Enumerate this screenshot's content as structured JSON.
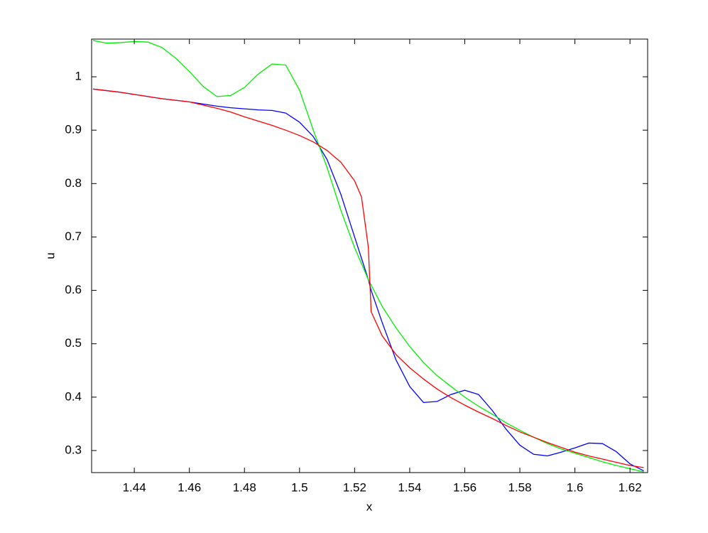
{
  "chart_data": {
    "type": "line",
    "x_label": "x",
    "y_label": "u",
    "x": [
      1.425,
      1.43,
      1.435,
      1.44,
      1.445,
      1.45,
      1.455,
      1.46,
      1.465,
      1.47,
      1.475,
      1.48,
      1.485,
      1.49,
      1.495,
      1.5,
      1.505,
      1.51,
      1.515,
      1.52,
      1.5225,
      1.525,
      1.526,
      1.53,
      1.535,
      1.54,
      1.545,
      1.55,
      1.555,
      1.56,
      1.565,
      1.57,
      1.575,
      1.58,
      1.585,
      1.59,
      1.595,
      1.6,
      1.605,
      1.61,
      1.615,
      1.62,
      1.625
    ],
    "series": [
      {
        "color": "#0000ff",
        "values": [
          0.977,
          0.974,
          0.971,
          0.967,
          0.963,
          0.959,
          0.956,
          0.953,
          0.949,
          0.945,
          0.942,
          0.94,
          0.938,
          0.937,
          0.932,
          0.915,
          0.888,
          0.845,
          0.78,
          0.7,
          0.66,
          0.62,
          0.6,
          0.54,
          0.47,
          0.42,
          0.39,
          0.392,
          0.405,
          0.413,
          0.405,
          0.375,
          0.34,
          0.31,
          0.293,
          0.29,
          0.297,
          0.305,
          0.314,
          0.313,
          0.298,
          0.275,
          0.262
        ]
      },
      {
        "color": "#00ee00",
        "values": [
          1.068,
          1.063,
          1.064,
          1.066,
          1.065,
          1.055,
          1.035,
          1.01,
          0.982,
          0.963,
          0.965,
          0.98,
          1.005,
          1.024,
          1.022,
          0.975,
          0.9,
          0.83,
          0.75,
          0.68,
          0.65,
          0.62,
          0.61,
          0.57,
          0.53,
          0.495,
          0.465,
          0.44,
          0.42,
          0.4,
          0.383,
          0.368,
          0.352,
          0.338,
          0.325,
          0.313,
          0.303,
          0.295,
          0.287,
          0.279,
          0.272,
          0.266,
          0.26
        ]
      },
      {
        "color": "#ff0000",
        "values": [
          0.977,
          0.974,
          0.971,
          0.967,
          0.963,
          0.959,
          0.956,
          0.953,
          0.947,
          0.941,
          0.934,
          0.925,
          0.917,
          0.909,
          0.9,
          0.89,
          0.878,
          0.862,
          0.84,
          0.805,
          0.775,
          0.68,
          0.56,
          0.515,
          0.48,
          0.455,
          0.434,
          0.415,
          0.399,
          0.385,
          0.372,
          0.36,
          0.347,
          0.335,
          0.325,
          0.315,
          0.306,
          0.297,
          0.29,
          0.284,
          0.278,
          0.272,
          0.268
        ]
      }
    ],
    "xlim": [
      1.4245,
      1.6264
    ],
    "ylim": [
      0.2587,
      1.0706
    ],
    "xticks": [
      1.44,
      1.46,
      1.48,
      1.5,
      1.52,
      1.54,
      1.56,
      1.58,
      1.6,
      1.62
    ],
    "yticks": [
      0.3,
      0.4,
      0.5,
      0.6,
      0.7,
      0.8,
      0.9,
      1
    ],
    "grid": false
  }
}
